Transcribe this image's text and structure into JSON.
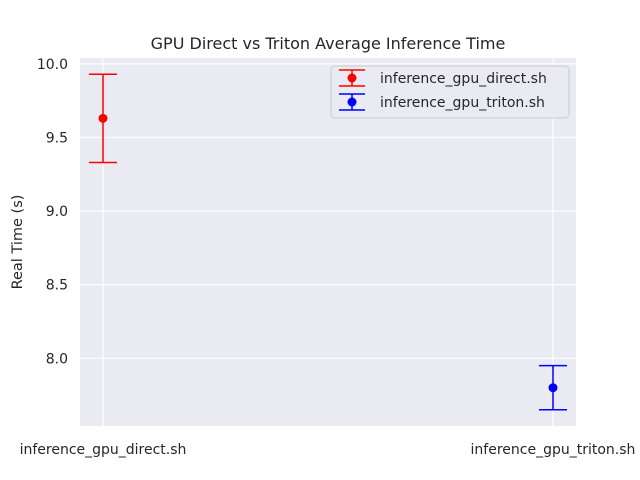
{
  "chart_data": {
    "type": "scatter",
    "title": "GPU Direct vs Triton Average Inference Time",
    "xlabel": "",
    "ylabel": "Real Time (s)",
    "categories": [
      "inference_gpu_direct.sh",
      "inference_gpu_triton.sh"
    ],
    "ylim": [
      7.54,
      10.04
    ],
    "yticks": [
      8.0,
      8.5,
      9.0,
      9.5,
      10.0
    ],
    "ytick_labels": [
      "8.0",
      "8.5",
      "9.0",
      "9.5",
      "10.0"
    ],
    "grid": true,
    "legend_position": "top-right",
    "background_color": "#eaeaf2",
    "series": [
      {
        "name": "inference_gpu_direct.sh",
        "category": "inference_gpu_direct.sh",
        "mean": 9.63,
        "error": 0.3,
        "color": "#ff0000"
      },
      {
        "name": "inference_gpu_triton.sh",
        "category": "inference_gpu_triton.sh",
        "mean": 7.8,
        "error": 0.15,
        "color": "#0000ff"
      }
    ]
  }
}
